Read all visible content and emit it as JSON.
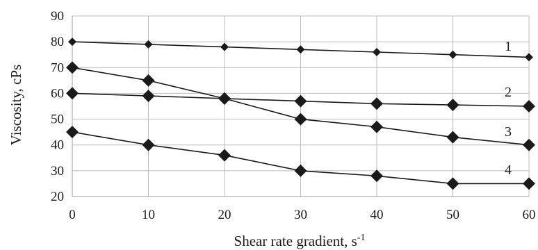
{
  "chart_data": {
    "type": "line",
    "x": [
      0,
      10,
      20,
      30,
      40,
      50,
      60
    ],
    "xlabel": "Shear rate gradient, s",
    "xlabel_superscript": "-1",
    "ylabel": "Viscosity, cPs",
    "xlim": [
      0,
      60
    ],
    "ylim": [
      20,
      90
    ],
    "x_ticks": [
      "0",
      "10",
      "20",
      "30",
      "40",
      "50",
      "60"
    ],
    "y_ticks": [
      "20",
      "30",
      "40",
      "50",
      "60",
      "70",
      "80",
      "90"
    ],
    "grid": true,
    "series": [
      {
        "name": "1",
        "values": [
          80,
          79,
          78,
          77,
          76,
          75,
          74
        ]
      },
      {
        "name": "2",
        "values": [
          60,
          59,
          58,
          57,
          56,
          55.5,
          55
        ]
      },
      {
        "name": "3",
        "values": [
          70,
          65,
          58,
          50,
          47,
          43,
          40
        ]
      },
      {
        "name": "4",
        "values": [
          45,
          40,
          36,
          30,
          28,
          25,
          25
        ]
      }
    ],
    "series_label_color": "#1a1a1a",
    "line_color": "#1a1a1a",
    "marker": "diamond"
  }
}
